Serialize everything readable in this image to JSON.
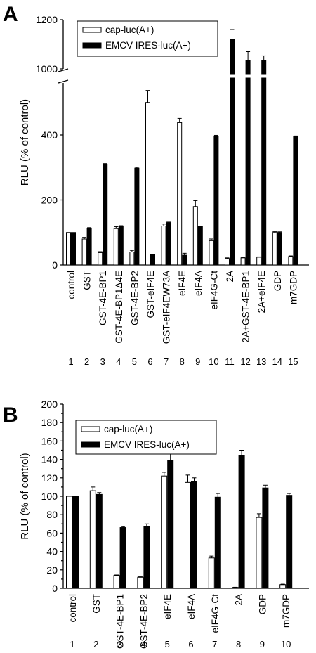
{
  "chart_data": [
    {
      "panel": "A",
      "type": "bar",
      "ylabel": "RLU (% of control)",
      "yticks": [
        0,
        200,
        400,
        1000,
        1200
      ],
      "y_break": [
        560,
        1000
      ],
      "ylim": [
        0,
        1200
      ],
      "categories": [
        "control",
        "GST",
        "GST-4E-BP1",
        "GST-4E-BP1Δ4E",
        "GST-4E-BP2",
        "GST-eIF4E",
        "GST-eIF4EW73A",
        "eIF4E",
        "eIF4A",
        "eIF4G-Ct",
        "2A",
        "2A+GST-4E-BP1",
        "2A+eIF4E",
        "GDP",
        "m7GDP"
      ],
      "lane_numbers": [
        "1",
        "2",
        "3",
        "4",
        "5",
        "6",
        "7",
        "8",
        "9",
        "10",
        "11",
        "12",
        "13",
        "14",
        "15"
      ],
      "legend": "top-left",
      "colors": {
        "cap": "#ffffff",
        "emcv": "#000000"
      },
      "series": [
        {
          "name": "cap-luc(A+)",
          "values": [
            100,
            80,
            38,
            112,
            40,
            500,
            120,
            438,
            180,
            75,
            20,
            22,
            24,
            100,
            26
          ],
          "errors": [
            0,
            5,
            3,
            6,
            5,
            37,
            6,
            13,
            18,
            5,
            2,
            2,
            1,
            3,
            2
          ]
        },
        {
          "name": "EMCV IRES-luc(A+)",
          "values": [
            100,
            112,
            310,
            118,
            298,
            32,
            130,
            30,
            118,
            395,
            1120,
            1035,
            1033,
            100,
            395
          ],
          "errors": [
            0,
            3,
            2,
            3,
            3,
            1,
            2,
            6,
            2,
            4,
            40,
            35,
            20,
            2,
            2
          ]
        }
      ]
    },
    {
      "panel": "B",
      "type": "bar",
      "ylabel": "RLU (% of control)",
      "yticks": [
        0,
        20,
        40,
        60,
        80,
        100,
        120,
        140,
        160,
        180,
        200
      ],
      "ylim": [
        0,
        200
      ],
      "categories": [
        "control",
        "GST",
        "GST-4E-BP1",
        "GST-4E-BP2",
        "eIF4E",
        "eIF4A",
        "eIF4G-Ct",
        "2A",
        "GDP",
        "m7GDP"
      ],
      "lane_numbers": [
        "1",
        "2",
        "3",
        "4",
        "5",
        "6",
        "7",
        "8",
        "9",
        "10"
      ],
      "legend": "top-left",
      "colors": {
        "cap": "#ffffff",
        "emcv": "#000000"
      },
      "series": [
        {
          "name": "cap-luc(A+)",
          "values": [
            100,
            106,
            14,
            12,
            122,
            115,
            33,
            1,
            77,
            4
          ],
          "errors": [
            0,
            4,
            0.5,
            0.5,
            4,
            8,
            2,
            0.2,
            4,
            0.5
          ]
        },
        {
          "name": "EMCV IRES-luc(A+)",
          "values": [
            100,
            102,
            66,
            67,
            139,
            116,
            99,
            144,
            109,
            101
          ],
          "errors": [
            0,
            2,
            1,
            3,
            8,
            4,
            4,
            6,
            3,
            2
          ]
        }
      ]
    }
  ]
}
